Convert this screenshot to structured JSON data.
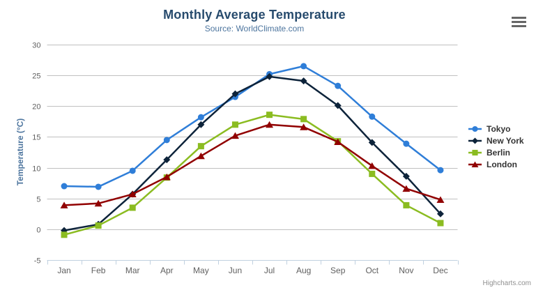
{
  "chart_data": {
    "type": "line",
    "title": "Monthly Average Temperature",
    "subtitle": "Source: WorldClimate.com",
    "credits": "Highcharts.com",
    "categories": [
      "Jan",
      "Feb",
      "Mar",
      "Apr",
      "May",
      "Jun",
      "Jul",
      "Aug",
      "Sep",
      "Oct",
      "Nov",
      "Dec"
    ],
    "xlabel": "",
    "ylabel": "Temperature (°C)",
    "ylim": [
      -5,
      30
    ],
    "ytick_step": 5,
    "grid": true,
    "legend_position": "right",
    "series": [
      {
        "name": "Tokyo",
        "color": "#2f7ed8",
        "marker": "circle",
        "values": [
          7.0,
          6.9,
          9.5,
          14.5,
          18.2,
          21.5,
          25.2,
          26.5,
          23.3,
          18.3,
          13.9,
          9.6
        ]
      },
      {
        "name": "New York",
        "color": "#0d233a",
        "marker": "diamond",
        "values": [
          -0.2,
          0.8,
          5.7,
          11.3,
          17.0,
          22.0,
          24.8,
          24.1,
          20.1,
          14.1,
          8.6,
          2.5
        ]
      },
      {
        "name": "Berlin",
        "color": "#8bbc21",
        "marker": "square",
        "values": [
          -0.9,
          0.6,
          3.5,
          8.4,
          13.5,
          17.0,
          18.6,
          17.9,
          14.3,
          9.0,
          3.9,
          1.0
        ]
      },
      {
        "name": "London",
        "color": "#910000",
        "marker": "triangle",
        "values": [
          3.9,
          4.2,
          5.7,
          8.5,
          11.9,
          15.2,
          17.0,
          16.6,
          14.2,
          10.3,
          6.6,
          4.8
        ]
      }
    ],
    "colors": {
      "title": "#274b6d",
      "subtitle": "#4d759e",
      "y_axis_title": "#4d759e",
      "axis_labels": "#606060",
      "gridline": "#c0c0c0",
      "x_axis_line": "#c0d0e0",
      "legend_text": "#333333",
      "credits": "#909090",
      "context_button": "#666666",
      "background": "#ffffff"
    }
  }
}
